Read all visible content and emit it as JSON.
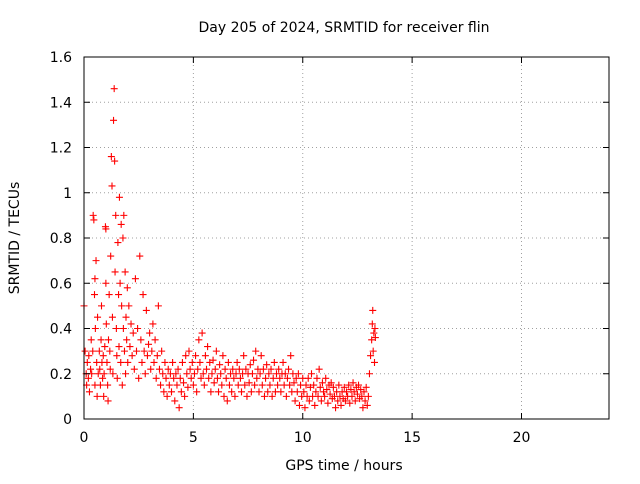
{
  "chart_data": {
    "type": "scatter",
    "title": "Day 205 of 2024, SRMTID for receiver flin",
    "xlabel": "GPS time / hours",
    "ylabel": "SRMTID / TECUs",
    "xlim": [
      0,
      24
    ],
    "ylim": [
      0,
      1.6
    ],
    "x_ticks": [
      0,
      5,
      10,
      15,
      20
    ],
    "x_tick_labels": [
      "0",
      "5",
      "10",
      "15",
      "20"
    ],
    "y_ticks": [
      0,
      0.2,
      0.4,
      0.6,
      0.8,
      1.0,
      1.2,
      1.4,
      1.6
    ],
    "y_tick_labels": [
      "0",
      "0.2",
      "0.4",
      "0.6",
      "0.8",
      "1",
      "1.2",
      "1.4",
      "1.6"
    ],
    "grid": true,
    "marker": "plus",
    "color": "#ff0000",
    "series": [
      {
        "name": "SRMTID",
        "points": [
          [
            0.0,
            0.5
          ],
          [
            0.05,
            0.3
          ],
          [
            0.1,
            0.2
          ],
          [
            0.12,
            0.15
          ],
          [
            0.15,
            0.25
          ],
          [
            0.2,
            0.18
          ],
          [
            0.22,
            0.28
          ],
          [
            0.25,
            0.12
          ],
          [
            0.3,
            0.22
          ],
          [
            0.33,
            0.35
          ],
          [
            0.35,
            0.2
          ],
          [
            0.4,
            0.3
          ],
          [
            0.42,
            0.9
          ],
          [
            0.45,
            0.88
          ],
          [
            0.48,
            0.55
          ],
          [
            0.5,
            0.62
          ],
          [
            0.5,
            0.15
          ],
          [
            0.52,
            0.4
          ],
          [
            0.55,
            0.7
          ],
          [
            0.58,
            0.25
          ],
          [
            0.6,
            0.1
          ],
          [
            0.62,
            0.45
          ],
          [
            0.65,
            0.2
          ],
          [
            0.7,
            0.3
          ],
          [
            0.72,
            0.22
          ],
          [
            0.75,
            0.15
          ],
          [
            0.78,
            0.35
          ],
          [
            0.8,
            0.5
          ],
          [
            0.82,
            0.25
          ],
          [
            0.85,
            0.18
          ],
          [
            0.88,
            0.28
          ],
          [
            0.9,
            0.1
          ],
          [
            0.92,
            0.2
          ],
          [
            0.95,
            0.32
          ],
          [
            0.98,
            0.85
          ],
          [
            1.0,
            0.84
          ],
          [
            1.0,
            0.6
          ],
          [
            1.02,
            0.42
          ],
          [
            1.05,
            0.25
          ],
          [
            1.08,
            0.15
          ],
          [
            1.1,
            0.08
          ],
          [
            1.12,
            0.35
          ],
          [
            1.15,
            0.55
          ],
          [
            1.18,
            0.3
          ],
          [
            1.2,
            0.22
          ],
          [
            1.22,
            0.72
          ],
          [
            1.25,
            1.16
          ],
          [
            1.28,
            1.03
          ],
          [
            1.3,
            0.45
          ],
          [
            1.32,
            0.2
          ],
          [
            1.35,
            1.32
          ],
          [
            1.38,
            1.46
          ],
          [
            1.4,
            1.14
          ],
          [
            1.42,
            0.65
          ],
          [
            1.45,
            0.9
          ],
          [
            1.48,
            0.4
          ],
          [
            1.5,
            0.28
          ],
          [
            1.52,
            0.18
          ],
          [
            1.55,
            0.78
          ],
          [
            1.58,
            0.55
          ],
          [
            1.6,
            0.32
          ],
          [
            1.62,
            0.98
          ],
          [
            1.65,
            0.6
          ],
          [
            1.68,
            0.25
          ],
          [
            1.7,
            0.86
          ],
          [
            1.72,
            0.5
          ],
          [
            1.75,
            0.15
          ],
          [
            1.78,
            0.8
          ],
          [
            1.8,
            0.4
          ],
          [
            1.82,
            0.9
          ],
          [
            1.85,
            0.3
          ],
          [
            1.88,
            0.65
          ],
          [
            1.9,
            0.2
          ],
          [
            1.92,
            0.45
          ],
          [
            1.95,
            0.35
          ],
          [
            1.98,
            0.58
          ],
          [
            2.0,
            0.25
          ],
          [
            2.05,
            0.5
          ],
          [
            2.1,
            0.32
          ],
          [
            2.15,
            0.42
          ],
          [
            2.2,
            0.28
          ],
          [
            2.25,
            0.38
          ],
          [
            2.3,
            0.22
          ],
          [
            2.35,
            0.62
          ],
          [
            2.4,
            0.3
          ],
          [
            2.45,
            0.4
          ],
          [
            2.5,
            0.18
          ],
          [
            2.55,
            0.72
          ],
          [
            2.6,
            0.35
          ],
          [
            2.65,
            0.25
          ],
          [
            2.7,
            0.55
          ],
          [
            2.75,
            0.3
          ],
          [
            2.8,
            0.2
          ],
          [
            2.85,
            0.48
          ],
          [
            2.9,
            0.28
          ],
          [
            2.95,
            0.33
          ],
          [
            3.0,
            0.38
          ],
          [
            3.05,
            0.22
          ],
          [
            3.1,
            0.3
          ],
          [
            3.15,
            0.42
          ],
          [
            3.2,
            0.25
          ],
          [
            3.25,
            0.35
          ],
          [
            3.3,
            0.18
          ],
          [
            3.35,
            0.28
          ],
          [
            3.4,
            0.5
          ],
          [
            3.45,
            0.22
          ],
          [
            3.5,
            0.15
          ],
          [
            3.55,
            0.3
          ],
          [
            3.6,
            0.2
          ],
          [
            3.65,
            0.12
          ],
          [
            3.7,
            0.25
          ],
          [
            3.75,
            0.18
          ],
          [
            3.8,
            0.1
          ],
          [
            3.85,
            0.22
          ],
          [
            3.9,
            0.15
          ],
          [
            3.95,
            0.2
          ],
          [
            4.0,
            0.12
          ],
          [
            4.05,
            0.25
          ],
          [
            4.1,
            0.18
          ],
          [
            4.15,
            0.08
          ],
          [
            4.2,
            0.2
          ],
          [
            4.25,
            0.15
          ],
          [
            4.3,
            0.22
          ],
          [
            4.35,
            0.05
          ],
          [
            4.4,
            0.18
          ],
          [
            4.45,
            0.12
          ],
          [
            4.5,
            0.25
          ],
          [
            4.55,
            0.16
          ],
          [
            4.6,
            0.1
          ],
          [
            4.65,
            0.28
          ],
          [
            4.7,
            0.2
          ],
          [
            4.75,
            0.14
          ],
          [
            4.8,
            0.3
          ],
          [
            4.85,
            0.22
          ],
          [
            4.9,
            0.18
          ],
          [
            4.95,
            0.25
          ],
          [
            5.0,
            0.15
          ],
          [
            5.05,
            0.2
          ],
          [
            5.1,
            0.28
          ],
          [
            5.15,
            0.12
          ],
          [
            5.2,
            0.22
          ],
          [
            5.25,
            0.35
          ],
          [
            5.3,
            0.25
          ],
          [
            5.35,
            0.18
          ],
          [
            5.4,
            0.38
          ],
          [
            5.45,
            0.2
          ],
          [
            5.5,
            0.15
          ],
          [
            5.55,
            0.28
          ],
          [
            5.6,
            0.22
          ],
          [
            5.65,
            0.32
          ],
          [
            5.7,
            0.18
          ],
          [
            5.75,
            0.25
          ],
          [
            5.8,
            0.12
          ],
          [
            5.85,
            0.2
          ],
          [
            5.9,
            0.26
          ],
          [
            5.95,
            0.16
          ],
          [
            6.0,
            0.22
          ],
          [
            6.05,
            0.3
          ],
          [
            6.1,
            0.18
          ],
          [
            6.15,
            0.12
          ],
          [
            6.2,
            0.24
          ],
          [
            6.25,
            0.2
          ],
          [
            6.3,
            0.15
          ],
          [
            6.35,
            0.28
          ],
          [
            6.4,
            0.1
          ],
          [
            6.45,
            0.22
          ],
          [
            6.5,
            0.18
          ],
          [
            6.55,
            0.08
          ],
          [
            6.6,
            0.25
          ],
          [
            6.65,
            0.15
          ],
          [
            6.7,
            0.2
          ],
          [
            6.75,
            0.12
          ],
          [
            6.8,
            0.22
          ],
          [
            6.85,
            0.18
          ],
          [
            6.9,
            0.1
          ],
          [
            6.95,
            0.2
          ],
          [
            7.0,
            0.25
          ],
          [
            7.05,
            0.15
          ],
          [
            7.1,
            0.22
          ],
          [
            7.15,
            0.18
          ],
          [
            7.2,
            0.12
          ],
          [
            7.25,
            0.2
          ],
          [
            7.3,
            0.28
          ],
          [
            7.35,
            0.15
          ],
          [
            7.4,
            0.22
          ],
          [
            7.45,
            0.1
          ],
          [
            7.5,
            0.2
          ],
          [
            7.55,
            0.16
          ],
          [
            7.6,
            0.24
          ],
          [
            7.65,
            0.12
          ],
          [
            7.7,
            0.2
          ],
          [
            7.75,
            0.26
          ],
          [
            7.8,
            0.15
          ],
          [
            7.85,
            0.3
          ],
          [
            7.9,
            0.18
          ],
          [
            7.95,
            0.22
          ],
          [
            8.0,
            0.12
          ],
          [
            8.05,
            0.2
          ],
          [
            8.1,
            0.28
          ],
          [
            8.15,
            0.15
          ],
          [
            8.2,
            0.22
          ],
          [
            8.25,
            0.1
          ],
          [
            8.3,
            0.18
          ],
          [
            8.35,
            0.24
          ],
          [
            8.4,
            0.12
          ],
          [
            8.45,
            0.2
          ],
          [
            8.5,
            0.15
          ],
          [
            8.55,
            0.22
          ],
          [
            8.6,
            0.1
          ],
          [
            8.65,
            0.18
          ],
          [
            8.7,
            0.25
          ],
          [
            8.75,
            0.12
          ],
          [
            8.8,
            0.2
          ],
          [
            8.85,
            0.15
          ],
          [
            8.9,
            0.22
          ],
          [
            8.95,
            0.18
          ],
          [
            9.0,
            0.12
          ],
          [
            9.05,
            0.2
          ],
          [
            9.1,
            0.25
          ],
          [
            9.15,
            0.15
          ],
          [
            9.2,
            0.2
          ],
          [
            9.25,
            0.1
          ],
          [
            9.3,
            0.18
          ],
          [
            9.35,
            0.22
          ],
          [
            9.4,
            0.15
          ],
          [
            9.45,
            0.28
          ],
          [
            9.5,
            0.12
          ],
          [
            9.55,
            0.2
          ],
          [
            9.6,
            0.16
          ],
          [
            9.65,
            0.08
          ],
          [
            9.7,
            0.18
          ],
          [
            9.75,
            0.12
          ],
          [
            9.8,
            0.2
          ],
          [
            9.85,
            0.06
          ],
          [
            9.9,
            0.15
          ],
          [
            9.95,
            0.1
          ],
          [
            10.0,
            0.18
          ],
          [
            10.05,
            0.12
          ],
          [
            10.1,
            0.05
          ],
          [
            10.15,
            0.15
          ],
          [
            10.2,
            0.1
          ],
          [
            10.25,
            0.18
          ],
          [
            10.3,
            0.08
          ],
          [
            10.35,
            0.14
          ],
          [
            10.4,
            0.2
          ],
          [
            10.45,
            0.1
          ],
          [
            10.5,
            0.15
          ],
          [
            10.55,
            0.06
          ],
          [
            10.6,
            0.12
          ],
          [
            10.65,
            0.18
          ],
          [
            10.7,
            0.1
          ],
          [
            10.75,
            0.22
          ],
          [
            10.8,
            0.14
          ],
          [
            10.85,
            0.08
          ],
          [
            10.9,
            0.16
          ],
          [
            10.95,
            0.12
          ],
          [
            11.0,
            0.1
          ],
          [
            11.05,
            0.18
          ],
          [
            11.1,
            0.13
          ],
          [
            11.15,
            0.07
          ],
          [
            11.2,
            0.15
          ],
          [
            11.25,
            0.11
          ],
          [
            11.3,
            0.16
          ],
          [
            11.35,
            0.09
          ],
          [
            11.4,
            0.14
          ],
          [
            11.45,
            0.1
          ],
          [
            11.5,
            0.05
          ],
          [
            11.55,
            0.12
          ],
          [
            11.6,
            0.08
          ],
          [
            11.65,
            0.15
          ],
          [
            11.7,
            0.1
          ],
          [
            11.75,
            0.06
          ],
          [
            11.8,
            0.12
          ],
          [
            11.85,
            0.09
          ],
          [
            11.9,
            0.14
          ],
          [
            11.95,
            0.08
          ],
          [
            12.0,
            0.12
          ],
          [
            12.05,
            0.1
          ],
          [
            12.1,
            0.15
          ],
          [
            12.15,
            0.07
          ],
          [
            12.2,
            0.13
          ],
          [
            12.25,
            0.1
          ],
          [
            12.3,
            0.16
          ],
          [
            12.35,
            0.12
          ],
          [
            12.4,
            0.08
          ],
          [
            12.45,
            0.14
          ],
          [
            12.5,
            0.11
          ],
          [
            12.55,
            0.15
          ],
          [
            12.6,
            0.09
          ],
          [
            12.65,
            0.13
          ],
          [
            12.7,
            0.1
          ],
          [
            12.75,
            0.05
          ],
          [
            12.8,
            0.12
          ],
          [
            12.85,
            0.08
          ],
          [
            12.9,
            0.14
          ],
          [
            12.95,
            0.06
          ],
          [
            13.0,
            0.1
          ],
          [
            13.05,
            0.2
          ],
          [
            13.1,
            0.28
          ],
          [
            13.15,
            0.35
          ],
          [
            13.18,
            0.42
          ],
          [
            13.2,
            0.48
          ],
          [
            13.22,
            0.3
          ],
          [
            13.25,
            0.38
          ],
          [
            13.28,
            0.25
          ],
          [
            13.3,
            0.4
          ],
          [
            13.32,
            0.36
          ]
        ]
      }
    ]
  }
}
